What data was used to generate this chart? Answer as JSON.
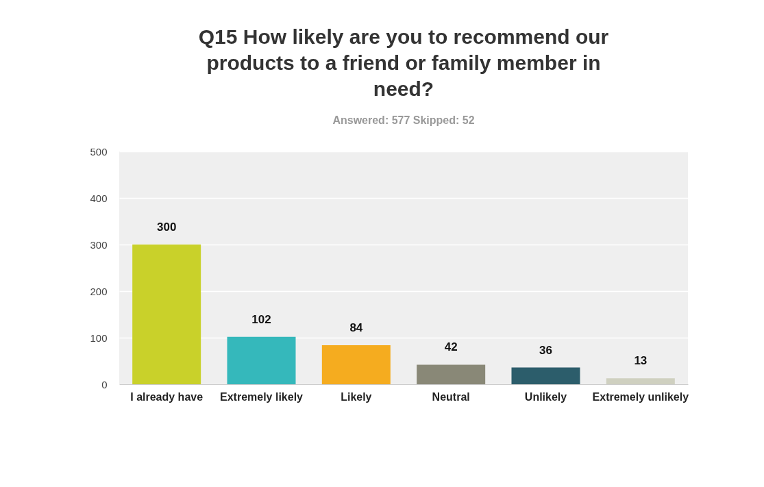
{
  "chart_data": {
    "type": "bar",
    "title": "Q15 How likely are you to recommend our products to a friend or family member in need?",
    "subtitle": "Answered: 577    Skipped: 52",
    "categories": [
      "I already have",
      "Extremely likely",
      "Likely",
      "Neutral",
      "Unlikely",
      "Extremely unlikely"
    ],
    "values": [
      300,
      102,
      84,
      42,
      36,
      13
    ],
    "colors": [
      "#c9d12a",
      "#35b8bb",
      "#f5ac1f",
      "#898877",
      "#2c5d6b",
      "#cfd0c0"
    ],
    "ylim": [
      0,
      500
    ],
    "yticks": [
      0,
      100,
      200,
      300,
      400,
      500
    ],
    "grid": "y",
    "data_labels": true
  }
}
